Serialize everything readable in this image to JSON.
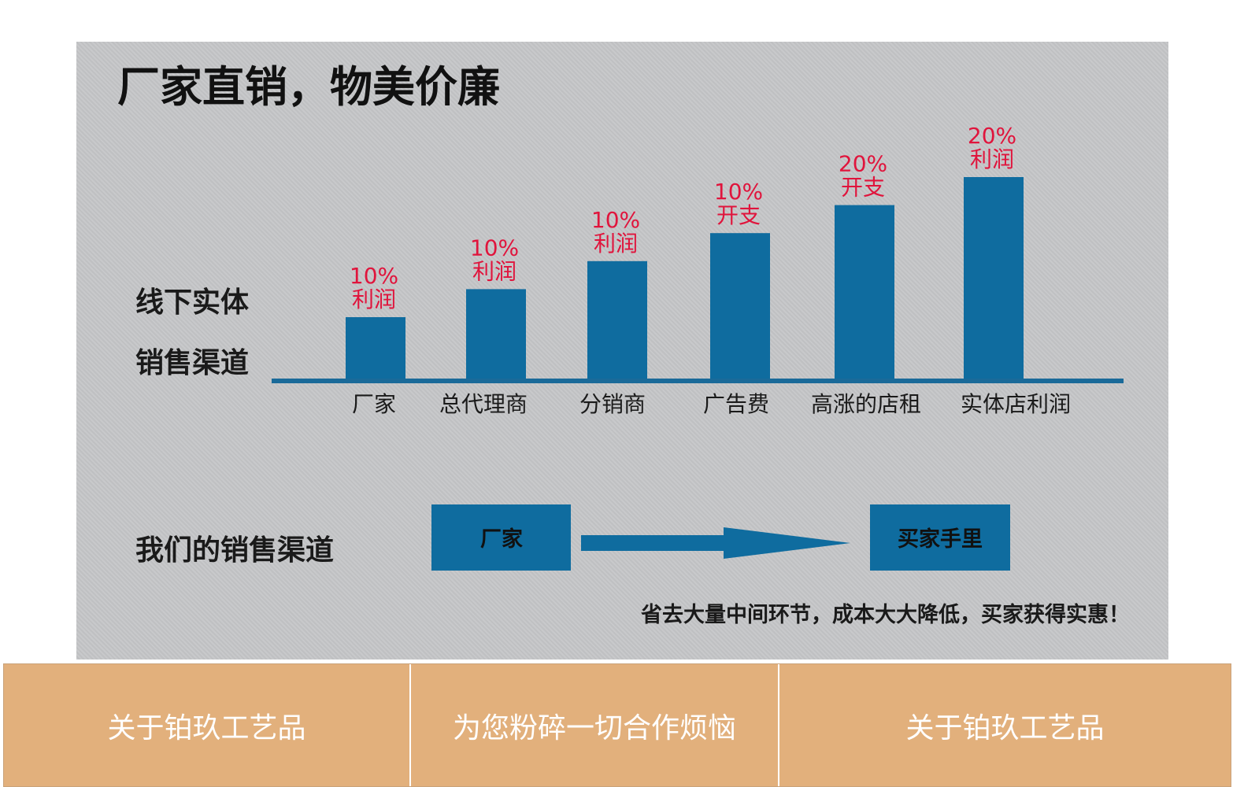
{
  "banner": {
    "title": "厂家直销，物美价廉",
    "offline_label_1": "线下实体",
    "offline_label_2": "销售渠道",
    "our_channel_label": "我们的销售渠道",
    "flow_from": "厂家",
    "flow_to": "买家手里",
    "slogan": "省去大量中间环节，成本大大降低，买家获得实惠！",
    "colors": {
      "bar": "#0f6c9f",
      "value_label": "#e0143c",
      "background": "#c5c6c8"
    }
  },
  "chart_data": {
    "type": "bar",
    "title": "厂家直销，物美价廉",
    "categories": [
      "厂家",
      "总代理商",
      "分销商",
      "广告费",
      "高涨的店租",
      "实体店利润"
    ],
    "values": [
      1,
      2,
      3,
      4,
      5,
      6
    ],
    "value_labels": [
      [
        "10%",
        "利润"
      ],
      [
        "10%",
        "利润"
      ],
      [
        "10%",
        "利润"
      ],
      [
        "10%",
        "开支"
      ],
      [
        "20%",
        "开支"
      ],
      [
        "20%",
        "利润"
      ]
    ],
    "xlabel": "",
    "ylabel": "",
    "grid": false,
    "legend": "none"
  },
  "nav": {
    "items": [
      {
        "label": "关于铂玖工艺品"
      },
      {
        "label": "为您粉碎一切合作烦恼"
      },
      {
        "label": "关于铂玖工艺品"
      }
    ]
  }
}
